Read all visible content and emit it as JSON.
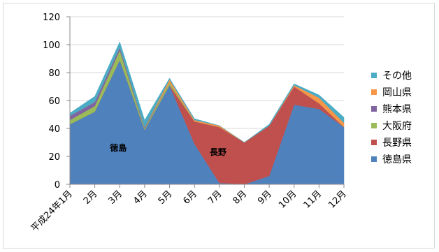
{
  "chart_data": {
    "type": "area",
    "stacked": true,
    "categories": [
      "平成24年1月",
      "2月",
      "3月",
      "4月",
      "5月",
      "6月",
      "7月",
      "8月",
      "9月",
      "10月",
      "11月",
      "12月"
    ],
    "yticks": [
      0,
      20,
      40,
      60,
      80,
      100,
      120
    ],
    "ylim": [
      0,
      120
    ],
    "grid": true,
    "legend": "right",
    "series": [
      {
        "name": "徳島県",
        "color": "#4f81bd",
        "values": [
          43,
          52,
          89,
          39,
          71,
          29,
          1,
          0,
          6,
          57,
          54,
          41
        ]
      },
      {
        "name": "長野県",
        "color": "#c0504d",
        "values": [
          0,
          0,
          0,
          0,
          0,
          16,
          40,
          30,
          36,
          13,
          4,
          0
        ]
      },
      {
        "name": "大阪府",
        "color": "#9bbb59",
        "values": [
          3,
          4,
          7,
          1,
          2,
          0,
          0,
          0,
          0,
          0,
          0,
          0
        ]
      },
      {
        "name": "熊本県",
        "color": "#8064a2",
        "values": [
          3,
          3,
          2,
          1,
          0,
          0,
          0,
          0,
          0,
          0,
          0,
          0
        ]
      },
      {
        "name": "岡山県",
        "color": "#f79646",
        "values": [
          0,
          0,
          0,
          0,
          2,
          1,
          1,
          0,
          0,
          1,
          4,
          3
        ]
      },
      {
        "name": "その他",
        "color": "#4bacc6",
        "values": [
          2,
          4,
          4,
          5,
          1,
          1,
          0,
          0,
          1,
          1,
          2,
          4
        ]
      }
    ],
    "annotations": [
      {
        "text": "徳島",
        "x": "3月",
        "y": 24
      },
      {
        "text": "長野",
        "x": "7月",
        "y": 21
      }
    ]
  }
}
